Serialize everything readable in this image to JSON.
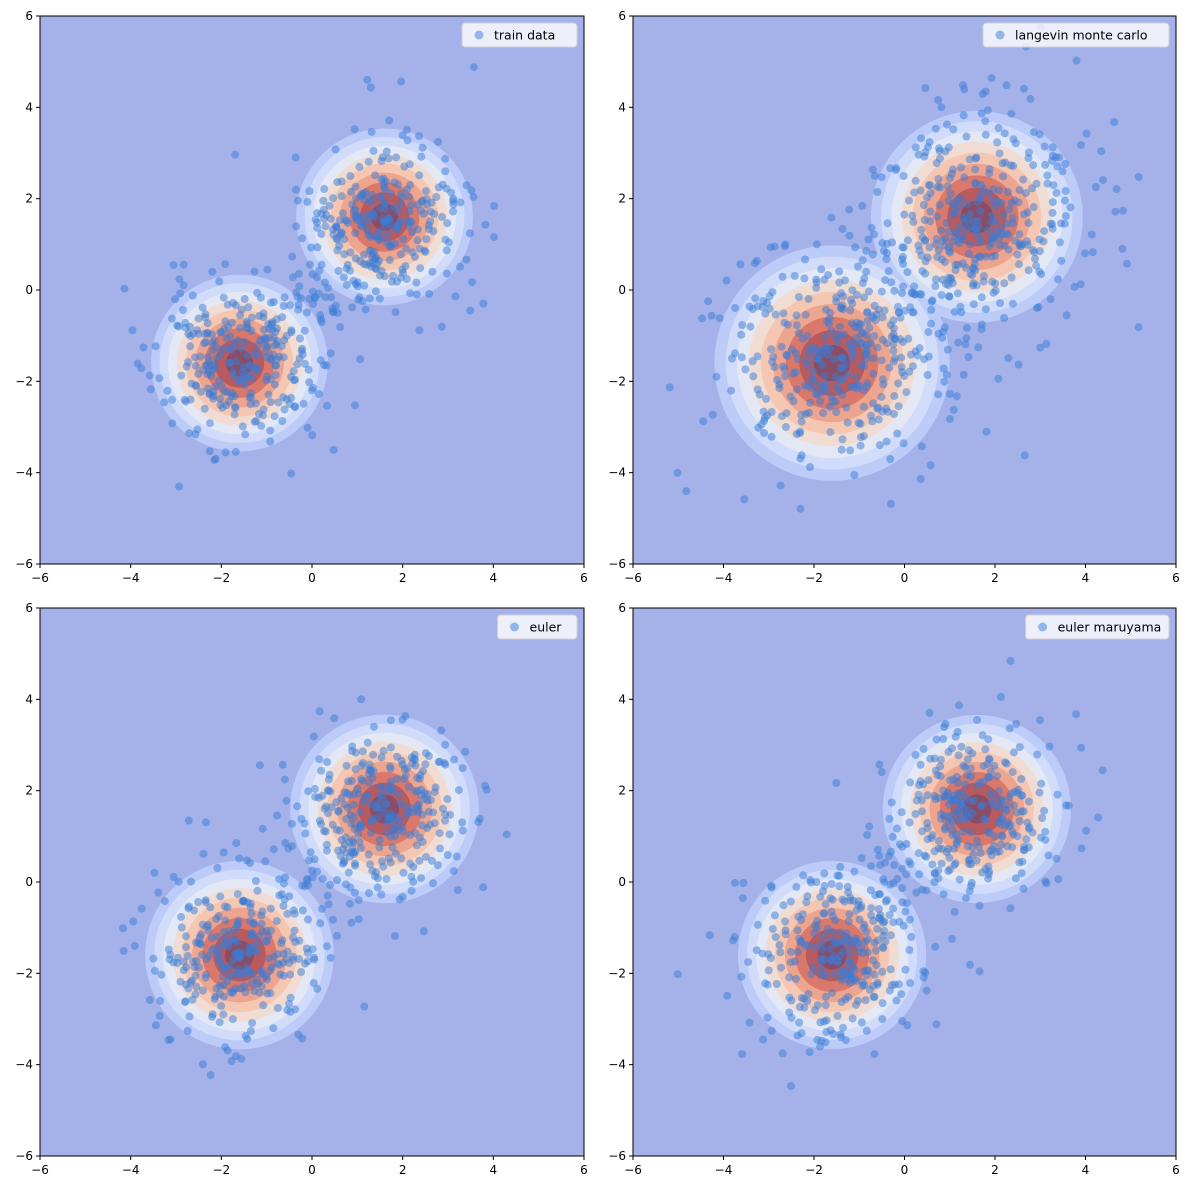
{
  "figure": {
    "layout": "2x2 grid of scatter plots over a density contour map"
  },
  "colors": {
    "background_level": "#a5b2ea",
    "contour_levels": [
      "#a5b2ea",
      "#bccbf8",
      "#d0dcfa",
      "#e3e8f4",
      "#f0dcd2",
      "#f5c7b3",
      "#eea58f",
      "#d9786b",
      "#b85a5e",
      "#8a4d66"
    ],
    "points": "#3a7bd5",
    "axes": "#000000"
  },
  "chart_data": [
    {
      "type": "scatter",
      "legend_label": "train data",
      "legend_position": "top-right",
      "xlim": [
        -6,
        6
      ],
      "ylim": [
        -6,
        6
      ],
      "xticks": [
        -6,
        -4,
        -2,
        0,
        2,
        4,
        6
      ],
      "yticks": [
        -6,
        -4,
        -2,
        0,
        2,
        4,
        6
      ],
      "xtick_labels": [
        "−6",
        "−4",
        "−2",
        "0",
        "2",
        "4",
        "6"
      ],
      "ytick_labels": [
        "−6",
        "−4",
        "−2",
        "0",
        "2",
        "4",
        "6"
      ],
      "grid": false,
      "density_modes": [
        {
          "x": -1.6,
          "y": -1.6,
          "spread": 0.75
        },
        {
          "x": 1.6,
          "y": 1.6,
          "spread": 0.75
        }
      ],
      "cluster_centers": [
        [
          -1.6,
          -1.6
        ],
        [
          1.6,
          1.6
        ]
      ],
      "cluster_spread": 0.95,
      "bridge_points": true,
      "points_per_cluster": 260,
      "seed": 11
    },
    {
      "type": "scatter",
      "legend_label": "langevin monte carlo",
      "legend_position": "top-right",
      "xlim": [
        -6,
        6
      ],
      "ylim": [
        -6,
        6
      ],
      "xticks": [
        -6,
        -4,
        -2,
        0,
        2,
        4,
        6
      ],
      "yticks": [
        -6,
        -4,
        -2,
        0,
        2,
        4,
        6
      ],
      "xtick_labels": [
        "−6",
        "−4",
        "−2",
        "0",
        "2",
        "4",
        "6"
      ],
      "ytick_labels": [
        "−6",
        "−4",
        "−2",
        "0",
        "2",
        "4",
        "6"
      ],
      "grid": false,
      "density_modes": [
        {
          "x": -1.6,
          "y": -1.6,
          "spread": 1.0
        },
        {
          "x": 1.6,
          "y": 1.6,
          "spread": 0.9
        }
      ],
      "cluster_centers": [
        [
          -1.6,
          -1.6
        ],
        [
          1.6,
          1.6
        ]
      ],
      "cluster_spread": 1.25,
      "bridge_points": true,
      "points_per_cluster": 330,
      "seed": 23
    },
    {
      "type": "scatter",
      "legend_label": "euler",
      "legend_position": "top-right",
      "xlim": [
        -6,
        6
      ],
      "ylim": [
        -6,
        6
      ],
      "xticks": [
        -6,
        -4,
        -2,
        0,
        2,
        4,
        6
      ],
      "yticks": [
        -6,
        -4,
        -2,
        0,
        2,
        4,
        6
      ],
      "xtick_labels": [
        "−6",
        "−4",
        "−2",
        "0",
        "2",
        "4",
        "6"
      ],
      "ytick_labels": [
        "−6",
        "−4",
        "−2",
        "0",
        "2",
        "4",
        "6"
      ],
      "grid": false,
      "density_modes": [
        {
          "x": -1.6,
          "y": -1.6,
          "spread": 0.8
        },
        {
          "x": 1.6,
          "y": 1.6,
          "spread": 0.8
        }
      ],
      "cluster_centers": [
        [
          -1.6,
          -1.6
        ],
        [
          1.6,
          1.6
        ]
      ],
      "cluster_spread": 0.95,
      "bridge_points": true,
      "points_per_cluster": 260,
      "seed": 37
    },
    {
      "type": "scatter",
      "legend_label": "euler maruyama",
      "legend_position": "top-right",
      "xlim": [
        -6,
        6
      ],
      "ylim": [
        -6,
        6
      ],
      "xticks": [
        -6,
        -4,
        -2,
        0,
        2,
        4,
        6
      ],
      "yticks": [
        -6,
        -4,
        -2,
        0,
        2,
        4,
        6
      ],
      "xtick_labels": [
        "−6",
        "−4",
        "−2",
        "0",
        "2",
        "4",
        "6"
      ],
      "ytick_labels": [
        "−6",
        "−4",
        "−2",
        "0",
        "2",
        "4",
        "6"
      ],
      "grid": false,
      "density_modes": [
        {
          "x": -1.6,
          "y": -1.6,
          "spread": 0.8
        },
        {
          "x": 1.6,
          "y": 1.6,
          "spread": 0.8
        }
      ],
      "cluster_centers": [
        [
          -1.6,
          -1.6
        ],
        [
          1.6,
          1.6
        ]
      ],
      "cluster_spread": 1.0,
      "bridge_points": true,
      "points_per_cluster": 260,
      "seed": 53
    }
  ]
}
